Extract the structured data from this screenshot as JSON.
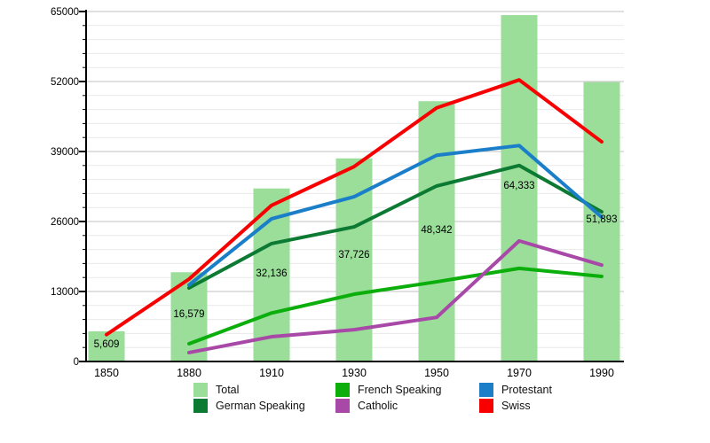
{
  "chart_data": {
    "type": "bar+line",
    "title": "",
    "xlabel": "",
    "ylabel": "",
    "categories": [
      "1850",
      "1880",
      "1910",
      "1930",
      "1950",
      "1970",
      "1990"
    ],
    "y_axis": {
      "ylim": [
        0,
        65000
      ],
      "ticks": [
        0,
        13000,
        26000,
        39000,
        52000,
        65000
      ],
      "tick_labels": [
        "0",
        "13000",
        "26000",
        "39000",
        "52000",
        "65000"
      ],
      "minor_step": 2600,
      "grid": true
    },
    "bars": {
      "name": "Total",
      "color": "#9ade9a",
      "values": [
        5609,
        16579,
        32136,
        37726,
        48342,
        64333,
        51893
      ],
      "labels": [
        "5,609",
        "16,579",
        "32,136",
        "37,726",
        "48,342",
        "64,333",
        "51,893"
      ]
    },
    "lines": [
      {
        "name": "French Speaking",
        "color": "#0bae0b",
        "values": [
          null,
          3300,
          9000,
          12500,
          14800,
          17300,
          15800
        ]
      },
      {
        "name": "Catholic",
        "color": "#a849a8",
        "values": [
          null,
          1650,
          4600,
          5900,
          8200,
          22400,
          17900
        ]
      },
      {
        "name": "German Speaking",
        "color": "#0c7a32",
        "values": [
          null,
          13650,
          21900,
          25000,
          32600,
          36400,
          27800
        ]
      },
      {
        "name": "Protestant",
        "color": "#1b7ec9",
        "values": [
          null,
          14200,
          26500,
          30600,
          38300,
          40100,
          26800
        ]
      },
      {
        "name": "Swiss",
        "color": "#f80000",
        "values": [
          5000,
          15300,
          29000,
          36200,
          47100,
          52300,
          40800
        ]
      }
    ],
    "legend": {
      "position": "bottom",
      "items": [
        {
          "label": "Total",
          "color": "#9ade9a",
          "row": 0,
          "col": 0
        },
        {
          "label": "French Speaking",
          "color": "#0bae0b",
          "row": 0,
          "col": 1
        },
        {
          "label": "Protestant",
          "color": "#1b7ec9",
          "row": 0,
          "col": 2
        },
        {
          "label": "German Speaking",
          "color": "#0c7a32",
          "row": 1,
          "col": 0
        },
        {
          "label": "Catholic",
          "color": "#a849a8",
          "row": 1,
          "col": 1
        },
        {
          "label": "Swiss",
          "color": "#f80000",
          "row": 1,
          "col": 2
        }
      ]
    },
    "colors": {
      "axis": "#000000",
      "grid_major": "#c2c2c2",
      "grid_minor": "#e9e9e9",
      "text": "#000000"
    }
  }
}
